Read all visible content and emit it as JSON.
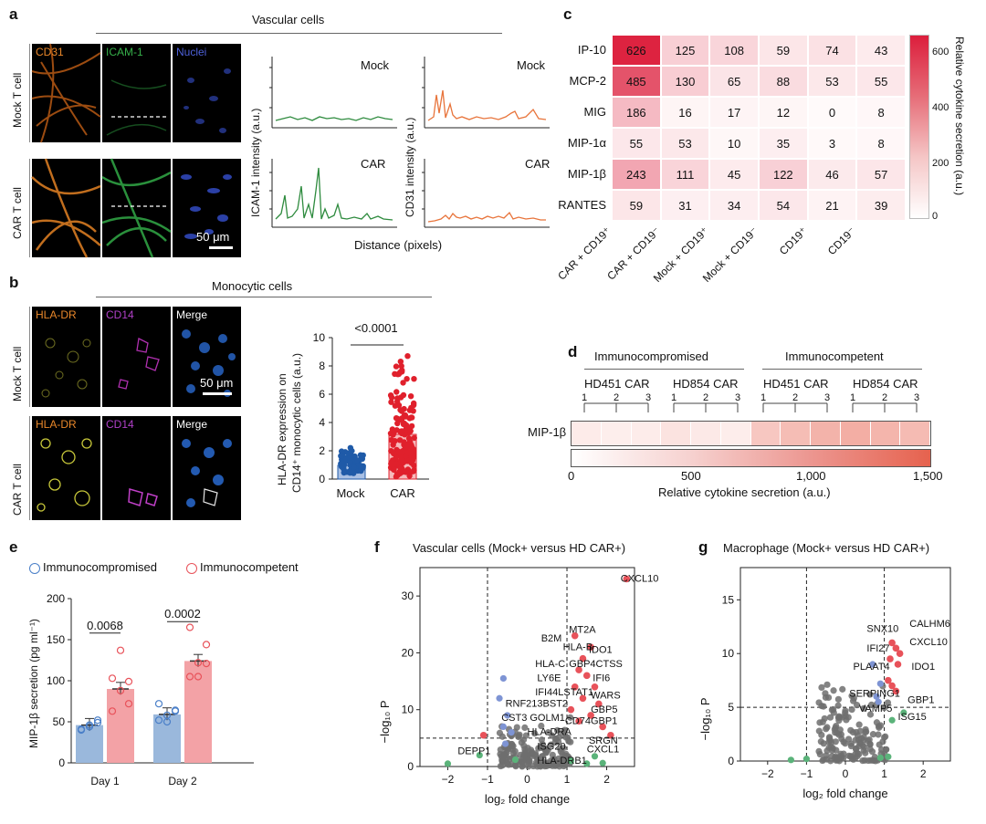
{
  "panels": {
    "a": "a",
    "b": "b",
    "c": "c",
    "d": "d",
    "e": "e",
    "f": "f",
    "g": "g"
  },
  "panel_a": {
    "title": "Vascular cells",
    "channels": [
      "CD31",
      "ICAM-1",
      "Nuclei"
    ],
    "rows": [
      "Mock T cell",
      "CAR T cell"
    ],
    "scale_bar": "50 μm",
    "plot_labels": {
      "mock": "Mock",
      "car": "CAR"
    },
    "y_left": "ICAM-1 intensity (a.u.)",
    "y_right": "CD31 intensity (a.u.)",
    "x_label": "Distance (pixels)",
    "colors": {
      "icam": "#2e8b3e",
      "cd31": "#e8743b"
    }
  },
  "panel_b": {
    "title": "Monocytic cells",
    "channels": [
      "HLA-DR",
      "CD14",
      "Merge"
    ],
    "rows": [
      "Mock T cell",
      "CAR T cell"
    ],
    "scale_bar": "50 μm",
    "p_value": "<0.0001",
    "y_label_line1": "HLA-DR expression on",
    "y_label_line2": "CD14⁺ monocytic cells (a.u.)",
    "yticks": [
      "0",
      "2",
      "4",
      "6",
      "8",
      "10"
    ],
    "categories": [
      "Mock",
      "CAR"
    ],
    "means": [
      1.0,
      3.2
    ],
    "colors": {
      "mock": "#1f5aa8",
      "car": "#e0202c"
    }
  },
  "panel_c": {
    "rows": [
      "IP-10",
      "MCP-2",
      "MIG",
      "MIP-1α",
      "MIP-1β",
      "RANTES"
    ],
    "cols": [
      "CAR + CD19⁺",
      "CAR + CD19⁻",
      "Mock + CD19⁺",
      "Mock + CD19⁻",
      "CD19⁺",
      "CD19⁻"
    ],
    "values": [
      [
        626,
        125,
        108,
        59,
        74,
        43
      ],
      [
        485,
        130,
        65,
        88,
        53,
        55
      ],
      [
        186,
        16,
        17,
        12,
        0,
        8
      ],
      [
        55,
        53,
        10,
        35,
        3,
        8
      ],
      [
        243,
        111,
        45,
        122,
        46,
        57
      ],
      [
        59,
        31,
        34,
        54,
        21,
        39
      ]
    ],
    "colorbar_ticks": [
      "600",
      "400",
      "200",
      "0"
    ],
    "colorbar_label": "Relative cytokine secretion (a.u.)"
  },
  "panel_d": {
    "group_labels": [
      "Immunocompromised",
      "Immunocompetent"
    ],
    "donor_labels": [
      "HD451 CAR",
      "HD854 CAR",
      "HD451 CAR",
      "HD854 CAR"
    ],
    "replicates": [
      "1",
      "2",
      "3"
    ],
    "row_label": "MIP-1β",
    "values": [
      150,
      120,
      140,
      230,
      170,
      130,
      500,
      600,
      700,
      750,
      680,
      620
    ],
    "colorbar_ticks": [
      "0",
      "500",
      "1,000",
      "1,500"
    ],
    "x_label": "Relative cytokine secretion (a.u.)"
  },
  "panel_e": {
    "legend": [
      "Immunocompromised",
      "Immunocompetent"
    ],
    "y_label": "MIP-1β secretion (pg ml⁻¹)",
    "yticks": [
      "0",
      "50",
      "100",
      "150",
      "200"
    ],
    "days": [
      "Day 1",
      "Day 2"
    ],
    "p_values": [
      "0.0068",
      "0.0002"
    ],
    "chart_data": {
      "type": "bar",
      "categories": [
        "Day 1",
        "Day 2"
      ],
      "series": [
        {
          "name": "Immunocompromised",
          "values": [
            46,
            59
          ],
          "points": [
            [
              40,
              46,
              49,
              41,
              44,
              52
            ],
            [
              52,
              58,
              63,
              72,
              50,
              64
            ]
          ]
        },
        {
          "name": "Immunocompetent",
          "values": [
            90,
            124
          ],
          "points": [
            [
              63,
              88,
              99,
              103,
              137,
              72
            ],
            [
              105,
              122,
              144,
              165,
              105,
              121
            ]
          ]
        }
      ],
      "ylim": [
        0,
        200
      ],
      "colors": [
        "#9ab8dc",
        "#f3a2a6"
      ]
    }
  },
  "panel_f": {
    "title": "Vascular cells (Mock+ versus HD CAR+)",
    "x_label": "log₂ fold change",
    "y_label": "−log₁₀ P",
    "xticks": [
      "−2",
      "−1",
      "0",
      "1",
      "2"
    ],
    "yticks": [
      "0",
      "10",
      "20",
      "30"
    ],
    "genes": [
      "CXCL10",
      "MT2A",
      "B2M",
      "IDO1",
      "HLA-B",
      "HLA-C",
      "GBP4CTSS",
      "LY6E",
      "IFI6",
      "IFI44LSTAT1",
      "WARS",
      "RNF213BST2",
      "GBP5",
      "CST3 GOLM1",
      "CD74GBP1",
      "HLA-DRA",
      "SRGN",
      "ISG20",
      "CXCL1",
      "DEPP1",
      "HLA-DRB1"
    ]
  },
  "panel_g": {
    "title": "Macrophage (Mock+ versus HD CAR+)",
    "x_label": "log₂ fold change",
    "y_label": "−log₁₀ P",
    "xticks": [
      "−2",
      "−1",
      "0",
      "1",
      "2"
    ],
    "yticks": [
      "0",
      "5",
      "10",
      "15"
    ],
    "genes": [
      "SNX10",
      "CALHM6",
      "IFI27",
      "CXCL10",
      "PLAAT4",
      "IDO1",
      "SERPING1",
      "VAMP5",
      "GBP1",
      "ISG15"
    ]
  }
}
